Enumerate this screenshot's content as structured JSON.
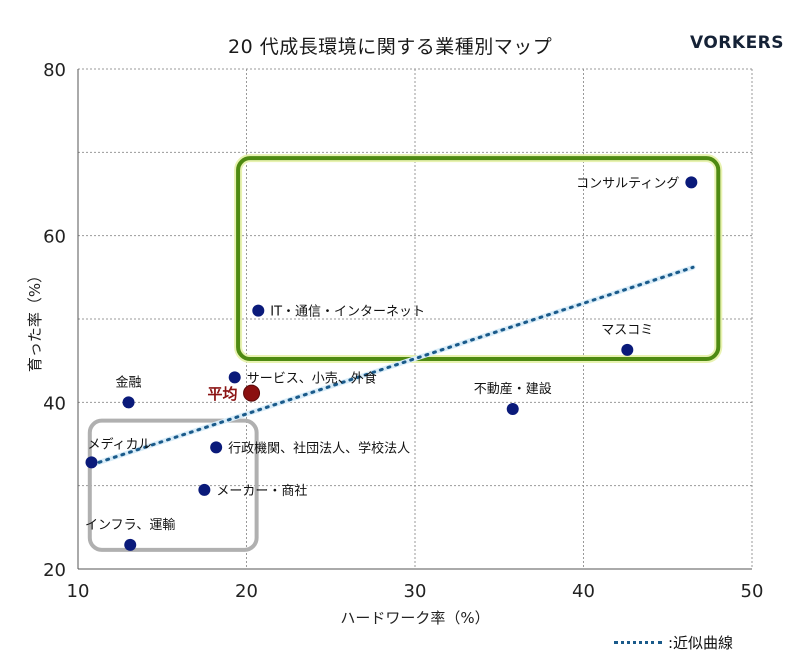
{
  "header": {
    "title": "20 代成長環境に関する業種別マップ",
    "brand": "VORKERS"
  },
  "legend": {
    "trend_label": ":近似曲線"
  },
  "colors": {
    "point": "#0a1a7a",
    "average": "#8b1010",
    "trend": "#1a5a8a",
    "green_box": "#4e8a12",
    "gray_box": "#b0b0b0",
    "grid": "#999999"
  },
  "chart_data": {
    "type": "scatter",
    "title": "20 代成長環境に関する業種別マップ",
    "xlabel": "ハードワーク率（%）",
    "ylabel": "育った率（%）",
    "xlim": [
      10,
      50
    ],
    "ylim": [
      20,
      80
    ],
    "xticks": [
      10,
      20,
      30,
      40,
      50
    ],
    "yticks": [
      20,
      40,
      60,
      80
    ],
    "grid": true,
    "points": [
      {
        "label": "コンサルティング",
        "x": 46.4,
        "y": 66.4,
        "label_pos": "left"
      },
      {
        "label": "IT・通信・インターネット",
        "x": 20.7,
        "y": 51.0,
        "label_pos": "right"
      },
      {
        "label": "マスコミ",
        "x": 42.6,
        "y": 46.3,
        "label_pos": "above"
      },
      {
        "label": "サービス、小売、外食",
        "x": 19.3,
        "y": 43.0,
        "label_pos": "right"
      },
      {
        "label": "金融",
        "x": 13.0,
        "y": 40.0,
        "label_pos": "above"
      },
      {
        "label": "不動産・建設",
        "x": 35.8,
        "y": 39.2,
        "label_pos": "above"
      },
      {
        "label": "行政機関、社団法人、学校法人",
        "x": 18.2,
        "y": 34.6,
        "label_pos": "right"
      },
      {
        "label": "メディカル",
        "x": 10.8,
        "y": 32.8,
        "label_pos": "above-right"
      },
      {
        "label": "メーカー・商社",
        "x": 17.5,
        "y": 29.5,
        "label_pos": "right"
      },
      {
        "label": "インフラ、運輸",
        "x": 13.1,
        "y": 22.9,
        "label_pos": "above"
      }
    ],
    "average": {
      "label": "平均",
      "x": 20.3,
      "y": 41.1
    },
    "trendline": {
      "label": "近似曲線",
      "x": [
        10.8,
        46.5
      ],
      "y": [
        32.5,
        56.2
      ]
    },
    "highlight_boxes": [
      {
        "name": "high-growth",
        "x_range": [
          19.5,
          48.0
        ],
        "y_range": [
          45.2,
          69.3
        ],
        "color": "green"
      },
      {
        "name": "low-growth",
        "x_range": [
          10.7,
          20.6
        ],
        "y_range": [
          22.3,
          37.8
        ],
        "color": "gray"
      }
    ]
  }
}
